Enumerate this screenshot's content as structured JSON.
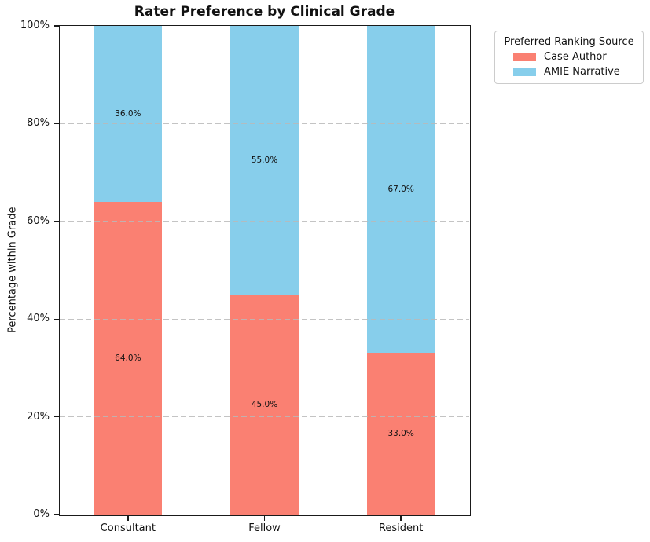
{
  "chart_data": {
    "type": "bar",
    "stacked": true,
    "title": "Rater Preference by Clinical Grade",
    "xlabel": "",
    "ylabel": "Percentage within Grade",
    "categories": [
      "Consultant",
      "Fellow",
      "Resident"
    ],
    "series": [
      {
        "name": "Case Author",
        "color": "#FA8072",
        "values": [
          64.0,
          45.0,
          33.0
        ]
      },
      {
        "name": "AMIE Narrative",
        "color": "#87CEEB",
        "values": [
          36.0,
          55.0,
          67.0
        ]
      }
    ],
    "bar_labels": [
      [
        "64.0%",
        "45.0%",
        "33.0%"
      ],
      [
        "36.0%",
        "55.0%",
        "67.0%"
      ]
    ],
    "ylim": [
      0,
      100
    ],
    "y_tick_values": [
      0,
      20,
      40,
      60,
      80,
      100
    ],
    "y_tick_labels": [
      "0%",
      "20%",
      "40%",
      "60%",
      "80%",
      "100%"
    ],
    "grid": {
      "axis": "y",
      "line_style": "dashed",
      "color": "#cccccc",
      "drawn_above_bars": true
    },
    "legend": {
      "title": "Preferred Ranking Source",
      "entries": [
        {
          "label": "Case Author",
          "color": "#FA8072"
        },
        {
          "label": "AMIE Narrative",
          "color": "#87CEEB"
        }
      ],
      "position": "outside-upper-right"
    },
    "axes": {
      "spines": "box",
      "background": "#ffffff"
    }
  }
}
